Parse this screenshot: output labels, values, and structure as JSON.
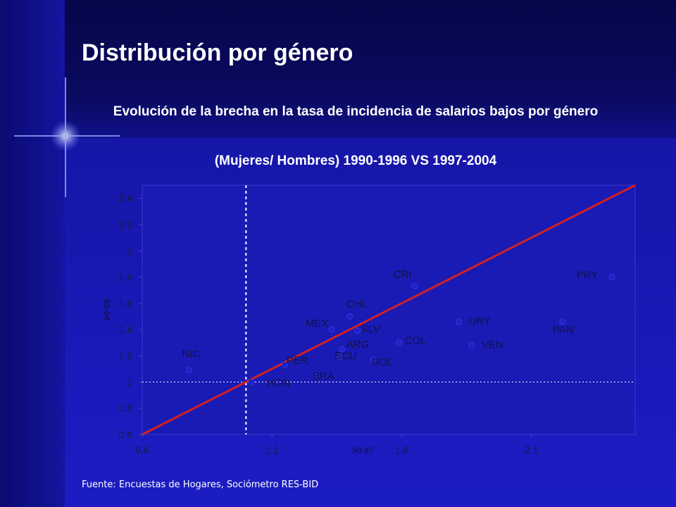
{
  "slide": {
    "title": "Distribución por género",
    "subtitle_line1": "Evolución de la brecha en la tasa de incidencia de salarios bajos por género",
    "subtitle_line2": "(Mujeres/ Hombres) 1990-1996 VS 1997-2004",
    "source": "Fuente: Encuestas de Hogares, Sociómetro RES-BID"
  },
  "colors": {
    "background": "#1a1ab8",
    "plot_area": "#1a1ab4",
    "diagonal_line": "#d42020",
    "reference_line": "#ffffff",
    "text": "#ffffff"
  },
  "chart_data": {
    "type": "scatter",
    "xlabel": "90-97",
    "ylabel": "98-04",
    "xlim": [
      0.6,
      2.5
    ],
    "ylim": [
      0.6,
      2.5
    ],
    "xticks": [
      "0.6",
      "1.1",
      "1.6",
      "2.1"
    ],
    "yticks": [
      "0.6",
      "0.8",
      "1",
      "1.2",
      "1.4",
      "1.6",
      "1.8",
      "2",
      "2.2",
      "2.4"
    ],
    "grid": false,
    "legend": "none",
    "reference_lines": [
      {
        "axis": "x",
        "value": 1.0,
        "style": "dashed"
      },
      {
        "axis": "y",
        "value": 1.0,
        "style": "dashed"
      },
      {
        "type": "diagonal",
        "from": [
          0.6,
          0.6
        ],
        "to": [
          2.5,
          2.5
        ]
      }
    ],
    "points": [
      {
        "label": "NIC",
        "x": 0.78,
        "y": 1.09
      },
      {
        "label": "HON",
        "x": 1.02,
        "y": 1.0
      },
      {
        "label": "PER",
        "x": 1.15,
        "y": 1.13
      },
      {
        "label": "BRA",
        "x": 1.27,
        "y": 1.04
      },
      {
        "label": "MEX",
        "x": 1.33,
        "y": 1.4
      },
      {
        "label": "ARG",
        "x": 1.37,
        "y": 1.25
      },
      {
        "label": "ECU",
        "x": 1.36,
        "y": 1.19
      },
      {
        "label": "CHL",
        "x": 1.4,
        "y": 1.5
      },
      {
        "label": "SLV",
        "x": 1.43,
        "y": 1.39
      },
      {
        "label": "BOL",
        "x": 1.49,
        "y": 1.17
      },
      {
        "label": "COL",
        "x": 1.59,
        "y": 1.3
      },
      {
        "label": "CRI",
        "x": 1.65,
        "y": 1.73
      },
      {
        "label": "URY",
        "x": 1.82,
        "y": 1.46
      },
      {
        "label": "VEN",
        "x": 1.87,
        "y": 1.28
      },
      {
        "label": "PAN",
        "x": 2.22,
        "y": 1.46
      },
      {
        "label": "PRY",
        "x": 2.41,
        "y": 1.8
      }
    ]
  }
}
